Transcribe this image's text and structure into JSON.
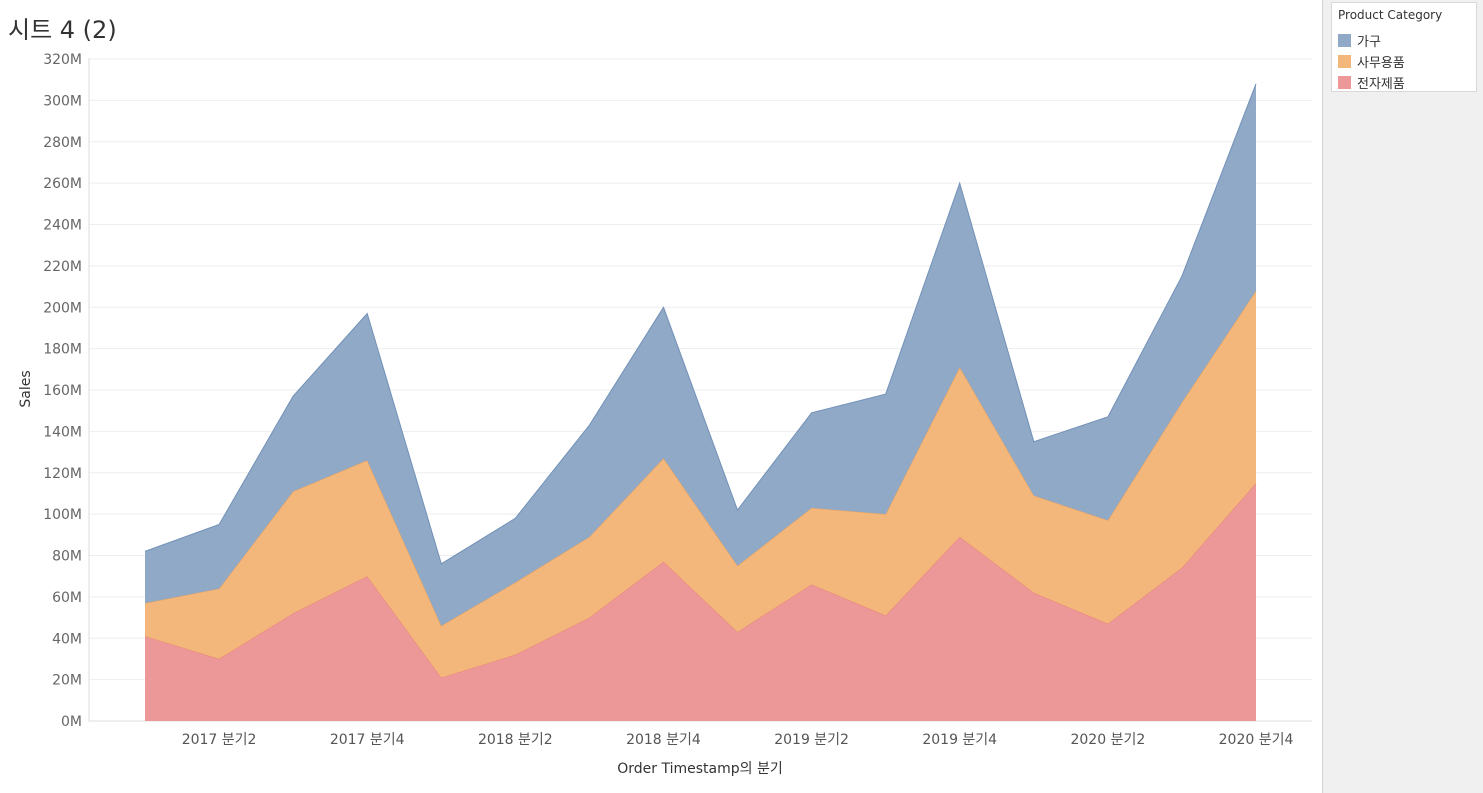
{
  "sheet": {
    "title": "시트 4 (2)"
  },
  "legend": {
    "title": "Product Category",
    "items": [
      {
        "label": "가구",
        "color": "#8fa9c7"
      },
      {
        "label": "사무용품",
        "color": "#f3b67b"
      },
      {
        "label": "전자제품",
        "color": "#ec9899"
      }
    ]
  },
  "chart_data": {
    "type": "area",
    "stacked": true,
    "xlabel": "Order Timestamp의 분기",
    "ylabel": "Sales",
    "x": [
      "2017 분기1",
      "2017 분기2",
      "2017 분기3",
      "2017 분기4",
      "2018 분기1",
      "2018 분기2",
      "2018 분기3",
      "2018 분기4",
      "2019 분기1",
      "2019 분기2",
      "2019 분기3",
      "2019 분기4",
      "2020 분기1",
      "2020 분기2",
      "2020 분기3",
      "2020 분기4"
    ],
    "x_tick_labels": [
      "2017 분기2",
      "2017 분기4",
      "2018 분기2",
      "2018 분기4",
      "2019 분기2",
      "2019 분기4",
      "2020 분기2",
      "2020 분기4"
    ],
    "y_ticks": [
      0,
      20,
      40,
      60,
      80,
      100,
      120,
      140,
      160,
      180,
      200,
      220,
      240,
      260,
      280,
      300,
      320
    ],
    "y_tick_labels": [
      "0M",
      "20M",
      "40M",
      "60M",
      "80M",
      "100M",
      "120M",
      "140M",
      "160M",
      "180M",
      "200M",
      "220M",
      "240M",
      "260M",
      "280M",
      "300M",
      "320M"
    ],
    "ylim": [
      0,
      320
    ],
    "grid": true,
    "legend_position": "right",
    "series": [
      {
        "name": "전자제품",
        "color": "#ec9899",
        "line": "#e8837a",
        "values": [
          41,
          30,
          52,
          70,
          21,
          32,
          50,
          77,
          43,
          66,
          51,
          89,
          62,
          47,
          74,
          115
        ]
      },
      {
        "name": "사무용품",
        "color": "#f3b67b",
        "line": "#e8a25e",
        "values": [
          16,
          34,
          59,
          56,
          25,
          35,
          39,
          50,
          32,
          37,
          49,
          82,
          47,
          50,
          80,
          93
        ]
      },
      {
        "name": "가구",
        "color": "#8fa9c7",
        "line": "#7291b7",
        "values": [
          25,
          31,
          46,
          71,
          30,
          31,
          54,
          73,
          27,
          46,
          58,
          89,
          26,
          50,
          61,
          100
        ]
      }
    ]
  }
}
